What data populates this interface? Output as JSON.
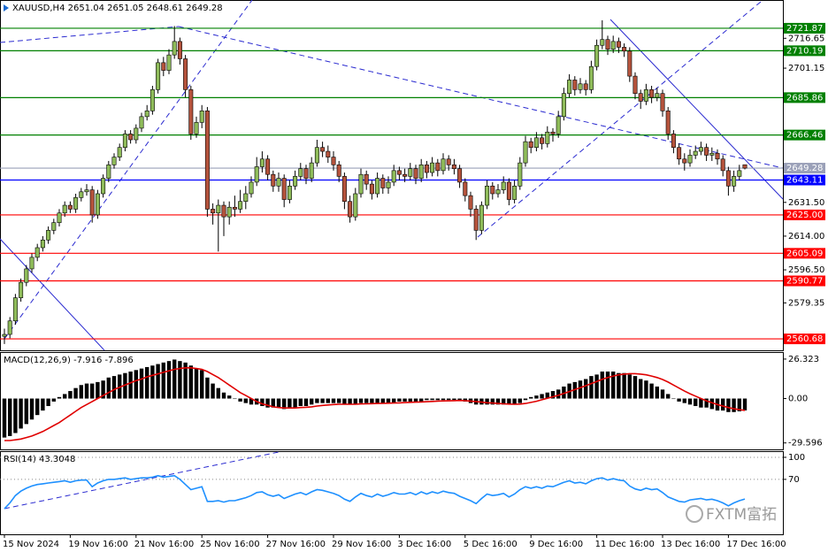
{
  "chart_data": [
    {
      "type": "candlestick",
      "title": "XAUUSD,H4  2651.04 2651.05 2648.61 2649.28",
      "up_color": "#8fbc5a",
      "down_color": "#b5533c",
      "categories": [
        "15 Nov 2024",
        null,
        null,
        null,
        null,
        null,
        null,
        null,
        null,
        null,
        null,
        null,
        "19 Nov 16:00",
        null,
        null,
        null,
        null,
        null,
        null,
        null,
        null,
        null,
        null,
        null,
        "21 Nov 16:00",
        null,
        null,
        null,
        null,
        null,
        null,
        null,
        null,
        null,
        null,
        null,
        "25 Nov 16:00",
        null,
        null,
        null,
        null,
        null,
        null,
        null,
        null,
        null,
        null,
        null,
        "27 Nov 16:00",
        null,
        null,
        null,
        null,
        null,
        null,
        null,
        null,
        null,
        null,
        null,
        "29 Nov 16:00",
        null,
        null,
        null,
        null,
        null,
        null,
        null,
        null,
        null,
        null,
        null,
        "3 Dec 16:00",
        null,
        null,
        null,
        null,
        null,
        null,
        null,
        null,
        null,
        null,
        null,
        "5 Dec 16:00",
        null,
        null,
        null,
        null,
        null,
        null,
        null,
        null,
        null,
        null,
        null,
        "9 Dec 16:00",
        null,
        null,
        null,
        null,
        null,
        null,
        null,
        null,
        null,
        null,
        null,
        "11 Dec 16:00",
        null,
        null,
        null,
        null,
        null,
        null,
        null,
        null,
        null,
        null,
        null,
        "13 Dec 16:00",
        null,
        null,
        null,
        null,
        null,
        null,
        null,
        null,
        null,
        null,
        null,
        "17 Dec 16:00",
        null,
        null,
        null
      ],
      "open": [
        2562,
        2563,
        2570,
        2582,
        2590,
        2597,
        2603,
        2608,
        2612,
        2617,
        2621,
        2626,
        2630,
        2628,
        2634,
        2637,
        2638,
        2625,
        2636,
        2644,
        2651,
        2655,
        2660,
        2667,
        2664,
        2670,
        2676,
        2679,
        2690,
        2704,
        2700,
        2708,
        2715,
        2706,
        2690,
        2667,
        2673,
        2679,
        2628,
        2626,
        2630,
        2624,
        2629,
        2628,
        2632,
        2636,
        2642,
        2650,
        2654,
        2646,
        2640,
        2644,
        2633,
        2640,
        2645,
        2649,
        2644,
        2652,
        2660,
        2658,
        2655,
        2651,
        2645,
        2632,
        2624,
        2636,
        2646,
        2641,
        2636,
        2644,
        2639,
        2642,
        2648,
        2646,
        2645,
        2649,
        2644,
        2651,
        2647,
        2652,
        2648,
        2654,
        2651,
        2649,
        2642,
        2635,
        2628,
        2617,
        2630,
        2640,
        2636,
        2638,
        2642,
        2633,
        2640,
        2652,
        2663,
        2660,
        2665,
        2662,
        2668,
        2667,
        2676,
        2688,
        2695,
        2690,
        2693,
        2690,
        2702,
        2713,
        2716,
        2711,
        2715,
        2712,
        2710,
        2697,
        2688,
        2684,
        2690,
        2686,
        2688,
        2679,
        2667,
        2660,
        2654,
        2652,
        2656,
        2658,
        2660,
        2656,
        2657,
        2654,
        2648,
        2640,
        2645,
        2651.04
      ],
      "high": [
        2566,
        2572,
        2584,
        2592,
        2599,
        2605,
        2610,
        2614,
        2619,
        2623,
        2628,
        2632,
        2632,
        2636,
        2639,
        2641,
        2640,
        2638,
        2646,
        2653,
        2657,
        2662,
        2669,
        2669,
        2672,
        2678,
        2682,
        2692,
        2706,
        2707,
        2711,
        2723,
        2717,
        2708,
        2692,
        2676,
        2682,
        2681,
        2631,
        2633,
        2632,
        2632,
        2635,
        2638,
        2640,
        2645,
        2655,
        2658,
        2656,
        2648,
        2647,
        2646,
        2643,
        2648,
        2652,
        2651,
        2655,
        2664,
        2663,
        2661,
        2658,
        2653,
        2647,
        2635,
        2639,
        2649,
        2648,
        2643,
        2647,
        2646,
        2645,
        2651,
        2650,
        2649,
        2652,
        2651,
        2654,
        2653,
        2655,
        2654,
        2657,
        2656,
        2654,
        2651,
        2644,
        2637,
        2630,
        2632,
        2643,
        2642,
        2641,
        2645,
        2644,
        2643,
        2655,
        2666,
        2665,
        2668,
        2667,
        2671,
        2670,
        2679,
        2691,
        2698,
        2697,
        2696,
        2695,
        2705,
        2716,
        2726,
        2718,
        2718,
        2717,
        2714,
        2712,
        2699,
        2690,
        2693,
        2692,
        2691,
        2690,
        2681,
        2669,
        2662,
        2657,
        2659,
        2661,
        2663,
        2662,
        2660,
        2659,
        2656,
        2650,
        2648,
        2651,
        2651.05
      ],
      "low": [
        2558,
        2561,
        2568,
        2580,
        2588,
        2595,
        2601,
        2606,
        2610,
        2615,
        2619,
        2624,
        2626,
        2626,
        2632,
        2635,
        2621,
        2623,
        2634,
        2642,
        2649,
        2653,
        2658,
        2662,
        2662,
        2668,
        2674,
        2677,
        2688,
        2697,
        2698,
        2706,
        2703,
        2686,
        2664,
        2665,
        2670,
        2624,
        2620,
        2606,
        2614,
        2620,
        2624,
        2626,
        2628,
        2634,
        2640,
        2647,
        2643,
        2637,
        2637,
        2629,
        2631,
        2638,
        2643,
        2641,
        2642,
        2650,
        2655,
        2652,
        2648,
        2642,
        2628,
        2621,
        2622,
        2634,
        2638,
        2633,
        2634,
        2636,
        2636,
        2640,
        2643,
        2642,
        2643,
        2641,
        2642,
        2644,
        2645,
        2645,
        2646,
        2648,
        2646,
        2639,
        2632,
        2624,
        2612,
        2615,
        2628,
        2633,
        2634,
        2636,
        2630,
        2631,
        2638,
        2650,
        2657,
        2658,
        2659,
        2660,
        2663,
        2665,
        2674,
        2686,
        2687,
        2688,
        2687,
        2688,
        2700,
        2711,
        2708,
        2709,
        2709,
        2707,
        2694,
        2685,
        2680,
        2682,
        2683,
        2684,
        2676,
        2664,
        2657,
        2651,
        2648,
        2650,
        2654,
        2656,
        2653,
        2653,
        2651,
        2645,
        2635,
        2637,
        2643,
        2648.61
      ],
      "close": [
        2563,
        2570,
        2582,
        2590,
        2597,
        2603,
        2608,
        2612,
        2617,
        2621,
        2626,
        2630,
        2628,
        2634,
        2637,
        2638,
        2625,
        2636,
        2644,
        2651,
        2655,
        2660,
        2667,
        2664,
        2670,
        2676,
        2679,
        2690,
        2704,
        2700,
        2708,
        2715,
        2706,
        2690,
        2667,
        2673,
        2679,
        2628,
        2626,
        2630,
        2624,
        2629,
        2628,
        2632,
        2636,
        2642,
        2650,
        2654,
        2646,
        2640,
        2644,
        2633,
        2640,
        2645,
        2649,
        2644,
        2652,
        2660,
        2658,
        2655,
        2651,
        2645,
        2632,
        2624,
        2636,
        2646,
        2641,
        2636,
        2644,
        2639,
        2642,
        2648,
        2646,
        2645,
        2649,
        2644,
        2651,
        2647,
        2652,
        2648,
        2654,
        2651,
        2649,
        2642,
        2635,
        2628,
        2617,
        2630,
        2640,
        2636,
        2638,
        2642,
        2633,
        2640,
        2652,
        2663,
        2660,
        2665,
        2662,
        2668,
        2667,
        2676,
        2688,
        2695,
        2690,
        2693,
        2690,
        2702,
        2713,
        2716,
        2711,
        2715,
        2712,
        2710,
        2697,
        2688,
        2684,
        2690,
        2686,
        2688,
        2679,
        2667,
        2660,
        2654,
        2652,
        2656,
        2658,
        2660,
        2656,
        2657,
        2654,
        2648,
        2640,
        2645,
        2648,
        2649.28
      ],
      "ylim": [
        2554.75,
        2736.06
      ],
      "yticks": [
        2716.65,
        2701.15,
        {
          "value": 2631.5,
          "label": "2631.50"
        },
        {
          "value": 2614,
          "label": "2614.00"
        },
        {
          "value": 2596.5,
          "label": "2596.50"
        },
        2579.35
      ],
      "levels": [
        {
          "value": 2721.87,
          "label": "2721.87",
          "color": "#008000"
        },
        {
          "value": 2710.19,
          "label": "2710.19",
          "color": "#008000"
        },
        {
          "value": 2685.86,
          "label": "2685.86",
          "color": "#008000"
        },
        {
          "value": 2666.46,
          "label": "2666.46",
          "color": "#008000"
        },
        {
          "value": 2649.28,
          "label": "2649.28",
          "color": "#9aa0b8"
        },
        {
          "value": 2643.11,
          "label": "2643.11",
          "color": "#0000ff"
        },
        {
          "value": 2625,
          "label": "2625.00",
          "color": "#ff0000"
        },
        {
          "value": 2605.09,
          "label": "2605.09",
          "color": "#ff0000"
        },
        {
          "value": 2590.77,
          "label": "2590.77",
          "color": "#ff0000"
        },
        {
          "value": 2560.68,
          "label": "2560.68",
          "color": "#ff0000"
        }
      ]
    },
    {
      "type": "macd",
      "title": "MACD(12,26,9) -7.916 -7.896",
      "ylim": [
        -33.9,
        30.4
      ],
      "yticks": [
        26.323,
        {
          "value": 0,
          "label": "0.00"
        },
        -29.596
      ],
      "series": [
        {
          "color": "#000000",
          "values": [
            -26,
            -25,
            -23,
            -20,
            -17,
            -14,
            -11,
            -8,
            -5,
            -2,
            1,
            3,
            5,
            7,
            9,
            10,
            10,
            11,
            12,
            14,
            15,
            16,
            17,
            18,
            19,
            20,
            21,
            22,
            23,
            24,
            25,
            26,
            25,
            24,
            22,
            20,
            19,
            14,
            10,
            7,
            4,
            2,
            0,
            -2,
            -3,
            -4,
            -4,
            -5,
            -6,
            -6,
            -6,
            -7,
            -6,
            -6,
            -5,
            -5,
            -4,
            -3,
            -3,
            -3,
            -3,
            -3,
            -4,
            -4,
            -4,
            -3,
            -3,
            -3,
            -3,
            -3,
            -3,
            -3,
            -2,
            -2,
            -2,
            -2,
            -2,
            -1,
            -1,
            -1,
            -1,
            -1,
            -1,
            -1,
            -2,
            -3,
            -4,
            -4,
            -4,
            -4,
            -4,
            -4,
            -4,
            -4,
            -3,
            -1,
            1,
            2,
            3,
            4,
            5,
            6,
            8,
            10,
            11,
            12,
            13,
            15,
            16,
            18,
            18,
            18,
            17,
            17,
            16,
            15,
            13,
            12,
            10,
            8,
            6,
            3,
            0,
            -2,
            -3,
            -4,
            -5,
            -6,
            -6,
            -7,
            -8,
            -8,
            -9,
            -9,
            -8.5,
            -7.916
          ]
        },
        {
          "color": "#e00000",
          "values": [
            -28,
            -28,
            -27.5,
            -27,
            -26,
            -25,
            -23.5,
            -22,
            -20,
            -18,
            -16,
            -13.5,
            -11,
            -8.5,
            -6,
            -4,
            -2,
            0,
            2,
            4,
            6,
            7.5,
            9,
            10.5,
            12,
            13,
            14.5,
            15.5,
            16.5,
            17.5,
            18.5,
            19.5,
            20,
            20.5,
            20.5,
            20,
            19.5,
            18,
            16,
            14,
            11.5,
            9,
            6.5,
            4,
            2,
            0,
            -2,
            -3.5,
            -4.5,
            -5.5,
            -6,
            -6.3,
            -6.3,
            -6.3,
            -6,
            -5.8,
            -5.5,
            -5,
            -4.6,
            -4.3,
            -4,
            -3.8,
            -3.8,
            -3.8,
            -3.8,
            -3.6,
            -3.5,
            -3.4,
            -3.3,
            -3.2,
            -3.1,
            -3,
            -2.9,
            -2.7,
            -2.5,
            -2.4,
            -2.3,
            -2.1,
            -1.9,
            -1.7,
            -1.6,
            -1.5,
            -1.4,
            -1.3,
            -1.4,
            -1.7,
            -2,
            -2.4,
            -2.8,
            -3,
            -3.3,
            -3.5,
            -3.7,
            -3.8,
            -3.7,
            -3.3,
            -2.6,
            -1.8,
            -0.8,
            0.2,
            1.2,
            2.2,
            3.4,
            4.7,
            6,
            7.3,
            8.6,
            10,
            11.4,
            12.8,
            14,
            15,
            15.8,
            16.3,
            16.6,
            16.6,
            16.3,
            15.8,
            15,
            14,
            12.7,
            11,
            9,
            7,
            5,
            3.2,
            1.6,
            0,
            -1.5,
            -2.8,
            -4,
            -5,
            -6,
            -6.8,
            -7.4,
            -7.896
          ]
        }
      ]
    },
    {
      "type": "line",
      "title": "RSI(14) 43.3048",
      "ylim": [
        -4.8,
        107.2
      ],
      "yticks": [
        100,
        70
      ],
      "grid": true,
      "series": [
        {
          "color": "#1e90ff",
          "values": [
            30,
            38,
            48,
            54,
            58,
            61,
            63,
            64,
            65,
            66,
            67,
            68,
            66,
            68,
            69,
            69,
            60,
            65,
            68,
            70,
            70,
            71,
            72,
            70,
            71,
            72,
            72,
            73,
            75,
            73,
            74,
            75,
            70,
            63,
            56,
            58,
            60,
            40,
            40,
            41,
            39,
            41,
            41,
            43,
            45,
            48,
            52,
            53,
            49,
            47,
            49,
            44,
            47,
            50,
            52,
            49,
            53,
            56,
            55,
            53,
            51,
            48,
            43,
            40,
            46,
            51,
            48,
            46,
            50,
            47,
            49,
            52,
            50,
            50,
            52,
            49,
            53,
            50,
            53,
            51,
            54,
            52,
            51,
            47,
            44,
            41,
            37,
            44,
            50,
            48,
            49,
            51,
            46,
            50,
            56,
            60,
            58,
            60,
            58,
            61,
            60,
            63,
            66,
            68,
            65,
            66,
            64,
            68,
            71,
            72,
            69,
            71,
            69,
            68,
            61,
            57,
            55,
            58,
            56,
            57,
            52,
            46,
            43,
            40,
            39,
            42,
            43,
            44,
            42,
            43,
            41,
            38,
            34,
            38,
            41,
            43.3048
          ]
        }
      ]
    }
  ],
  "watermark": "FXTM富拓"
}
